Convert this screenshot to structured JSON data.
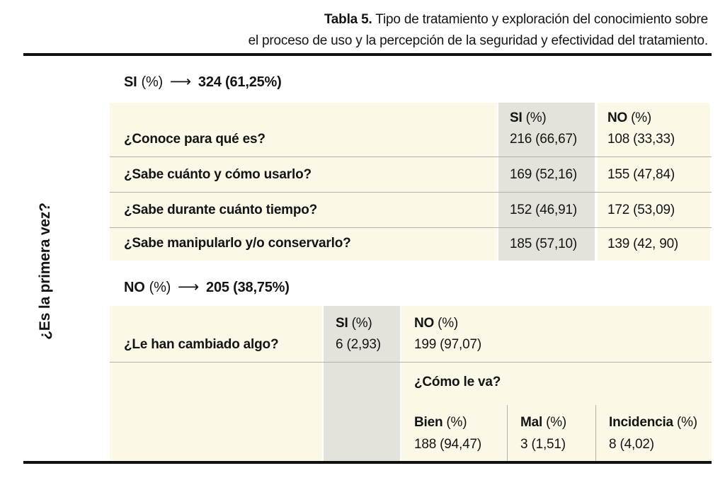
{
  "title": {
    "label_bold": "Tabla 5.",
    "line1_rest": " Tipo de tratamiento y exploración del conocimiento sobre",
    "line2": "el proceso de uso y la percepción de la seguridad y efectividad del tratamiento."
  },
  "side_label": "¿Es la primera vez?",
  "colors": {
    "cream_cell": "#fbf8e7",
    "gray_cell": "#e3e2db",
    "divider": "#b3b1a8",
    "rule": "#101010",
    "text": "#141414"
  },
  "section_si": {
    "prefix": "SI",
    "pct": "(%)",
    "arrow": "⟶",
    "value": "324 (61,25%)",
    "table": {
      "headers": {
        "si_name": "SI",
        "si_pct": "(%)",
        "no_name": "NO",
        "no_pct": "(%)"
      },
      "rows": [
        {
          "question": "¿Conoce para qué es?",
          "si": "216 (66,67)",
          "no": "108 (33,33)"
        },
        {
          "question": "¿Sabe cuánto y cómo usarlo?",
          "si": "169 (52,16)",
          "no": "155 (47,84)"
        },
        {
          "question": "¿Sabe durante cuánto tiempo?",
          "si": "152 (46,91)",
          "no": "172 (53,09)"
        },
        {
          "question": "¿Sabe manipularlo y/o conservarlo?",
          "si": "185 (57,10)",
          "no": "139 (42, 90)"
        }
      ]
    }
  },
  "section_no": {
    "prefix": "NO",
    "pct": "(%)",
    "arrow": "⟶",
    "value": "205 (38,75%)",
    "table": {
      "question": "¿Le han cambiado algo?",
      "si_name": "SI",
      "si_pct": "(%)",
      "si_value": "6 (2,93)",
      "no_name": "NO",
      "no_pct": "(%)",
      "no_value": "199 (97,07)",
      "followup": "¿Cómo le va?",
      "outcomes": [
        {
          "name": "Bien",
          "pct": "(%)",
          "value": "188 (94,47)"
        },
        {
          "name": "Mal",
          "pct": "(%)",
          "value": "3 (1,51)"
        },
        {
          "name": "Incidencia",
          "pct": "(%)",
          "value": "8 (4,02)"
        }
      ]
    }
  }
}
